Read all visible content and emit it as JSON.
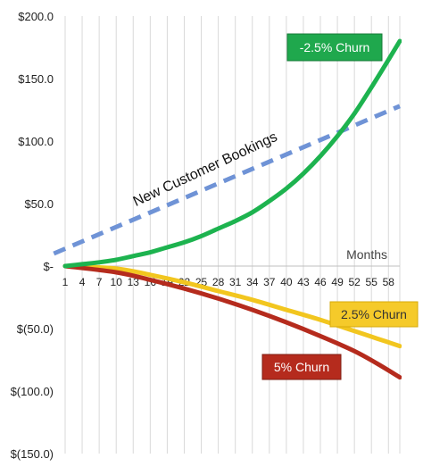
{
  "chart_data": {
    "type": "line",
    "xlabel": "Months",
    "ylabel": "",
    "ylim": [
      -150,
      200
    ],
    "xlim": [
      1,
      60
    ],
    "yticks": [
      {
        "value": 200,
        "label": "$200.0"
      },
      {
        "value": 150,
        "label": "$150.0"
      },
      {
        "value": 100,
        "label": "$100.0"
      },
      {
        "value": 50,
        "label": "$50.0"
      },
      {
        "value": 0,
        "label": "$-"
      },
      {
        "value": -50,
        "label": "$(50.0)"
      },
      {
        "value": -100,
        "label": "$(100.0)"
      },
      {
        "value": -150,
        "label": "$(150.0)"
      }
    ],
    "xticks": [
      "1",
      "4",
      "7",
      "10",
      "13",
      "16",
      "19",
      "22",
      "25",
      "28",
      "31",
      "34",
      "37",
      "40",
      "43",
      "46",
      "49",
      "52",
      "55",
      "58"
    ],
    "grid": "vertical",
    "series": [
      {
        "name": "New Customer Bookings",
        "color": "#6f93d6",
        "dash": true,
        "points": [
          [
            -1,
            10
          ],
          [
            60,
            128
          ]
        ]
      },
      {
        "name": "-2.5% Churn",
        "color": "#1db34f",
        "points": [
          [
            1,
            0
          ],
          [
            4,
            1.5
          ],
          [
            7,
            3
          ],
          [
            10,
            5
          ],
          [
            13,
            8
          ],
          [
            16,
            11
          ],
          [
            19,
            15
          ],
          [
            22,
            19
          ],
          [
            25,
            24
          ],
          [
            28,
            30
          ],
          [
            31,
            36
          ],
          [
            34,
            43
          ],
          [
            37,
            52
          ],
          [
            40,
            62
          ],
          [
            43,
            74
          ],
          [
            46,
            88
          ],
          [
            49,
            104
          ],
          [
            52,
            122
          ],
          [
            55,
            143
          ],
          [
            58,
            165
          ],
          [
            60,
            180
          ]
        ]
      },
      {
        "name": "2.5% Churn",
        "color": "#f2c61f",
        "points": [
          [
            1,
            0
          ],
          [
            10,
            -2
          ],
          [
            16,
            -7
          ],
          [
            22,
            -13
          ],
          [
            28,
            -20
          ],
          [
            34,
            -27
          ],
          [
            40,
            -35
          ],
          [
            46,
            -43
          ],
          [
            52,
            -52
          ],
          [
            56,
            -58
          ],
          [
            60,
            -64
          ]
        ]
      },
      {
        "name": "5% Churn",
        "color": "#b52b1d",
        "points": [
          [
            1,
            0
          ],
          [
            10,
            -5
          ],
          [
            16,
            -11
          ],
          [
            22,
            -18
          ],
          [
            28,
            -26
          ],
          [
            34,
            -35
          ],
          [
            40,
            -45
          ],
          [
            46,
            -56
          ],
          [
            52,
            -68
          ],
          [
            56,
            -78
          ],
          [
            60,
            -89
          ]
        ]
      }
    ],
    "annotations": [
      {
        "text": "New Customer Bookings"
      },
      {
        "text": "-2.5% Churn",
        "bg": "#1fa84d",
        "fg": "#ffffff"
      },
      {
        "text": "2.5% Churn",
        "bg": "#f5ca2a",
        "fg": "#333333"
      },
      {
        "text": "5% Churn",
        "bg": "#b52b1d",
        "fg": "#ffffff"
      }
    ]
  }
}
